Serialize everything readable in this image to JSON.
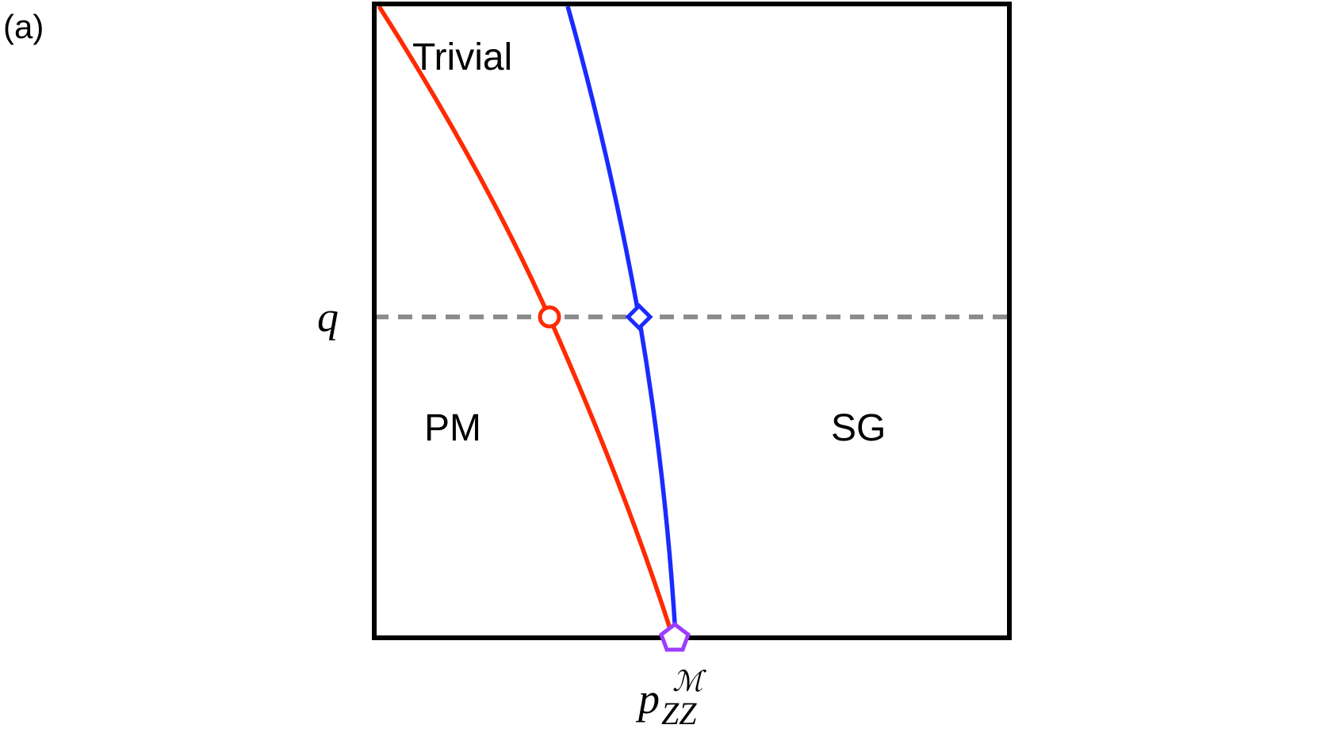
{
  "panel_label": "(a)",
  "regions": {
    "trivial": "Trivial",
    "pm": "PM",
    "sg": "SG"
  },
  "axes": {
    "y_marker": "q",
    "x_marker_base": "p",
    "x_marker_sub": "ZZ",
    "x_marker_sup": "ℳ"
  },
  "colors": {
    "frame": "#000000",
    "red_boundary": "#ff2a00",
    "blue_boundary": "#1a2bff",
    "dashed_line": "#8c8c8c",
    "pentagon": "#9b3dff"
  },
  "markers": {
    "circle": "red-circle-marker",
    "diamond": "blue-diamond-marker",
    "pentagon": "purple-pentagon-marker"
  }
}
